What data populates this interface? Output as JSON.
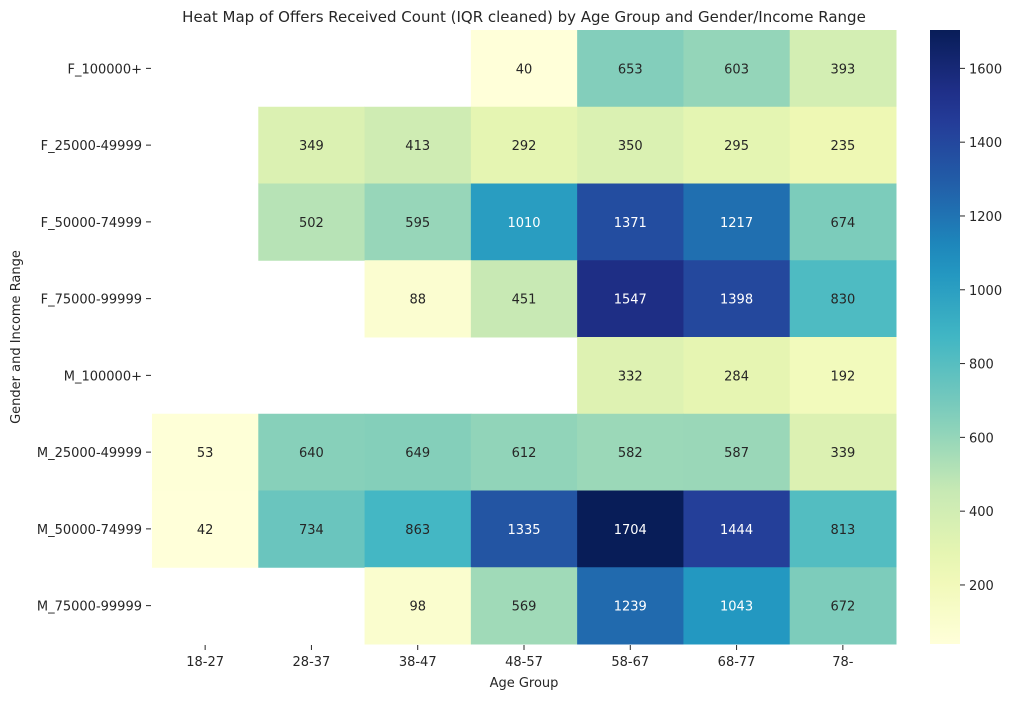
{
  "chart_data": {
    "type": "heatmap",
    "title": "Heat Map of Offers Received Count (IQR cleaned) by Age Group and Gender/Income Range",
    "xlabel": "Age Group",
    "ylabel": "Gender and Income Range",
    "x_categories": [
      "18-27",
      "28-37",
      "38-47",
      "48-57",
      "58-67",
      "68-77",
      "78-"
    ],
    "y_categories": [
      "F_100000+",
      "F_25000-49999",
      "F_50000-74999",
      "F_75000-99999",
      "M_100000+",
      "M_25000-49999",
      "M_50000-74999",
      "M_75000-99999"
    ],
    "values": [
      [
        null,
        null,
        null,
        40,
        653,
        603,
        393
      ],
      [
        null,
        349,
        413,
        292,
        350,
        295,
        235
      ],
      [
        null,
        502,
        595,
        1010,
        1371,
        1217,
        674
      ],
      [
        null,
        null,
        88,
        451,
        1547,
        1398,
        830
      ],
      [
        null,
        null,
        null,
        null,
        332,
        284,
        192
      ],
      [
        53,
        640,
        649,
        612,
        582,
        587,
        339
      ],
      [
        42,
        734,
        863,
        1335,
        1704,
        1444,
        813
      ],
      [
        null,
        null,
        98,
        569,
        1239,
        1043,
        672
      ]
    ],
    "colormap": "YlGnBu",
    "colorbar": {
      "min": 40,
      "max": 1704,
      "ticks": [
        200,
        400,
        600,
        800,
        1000,
        1200,
        1400,
        1600
      ]
    },
    "missing_cells": "blank",
    "grid": false
  }
}
